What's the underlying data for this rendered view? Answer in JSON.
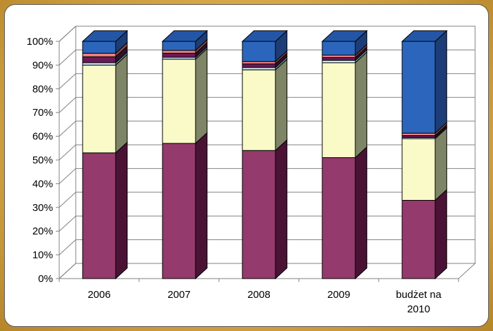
{
  "chart_data": {
    "type": "bar",
    "stacked": true,
    "percent_stacked": true,
    "three_d": true,
    "categories": [
      [
        "2006"
      ],
      [
        "2007"
      ],
      [
        "2008"
      ],
      [
        "2009"
      ],
      [
        "budżet na",
        "2010"
      ]
    ],
    "series": [
      {
        "values": [
          53,
          57,
          54,
          51,
          33
        ]
      },
      {
        "values": [
          37,
          35.5,
          34,
          40,
          26
        ]
      },
      {
        "values": [
          1,
          0.8,
          1,
          1,
          0.5
        ]
      },
      {
        "values": [
          2.5,
          1.7,
          1.5,
          1.2,
          0.8
        ]
      },
      {
        "values": [
          1.5,
          1.2,
          1,
          1,
          1
        ]
      },
      {
        "values": [
          5,
          3.8,
          8.5,
          5.8,
          38.7
        ]
      }
    ],
    "y_ticks": [
      "0%",
      "10%",
      "20%",
      "30%",
      "40%",
      "50%",
      "60%",
      "70%",
      "80%",
      "90%",
      "100%"
    ],
    "ylim": [
      0,
      100
    ],
    "grid": true,
    "legend": "none",
    "colors": {
      "front": [
        "#943a6c",
        "#fafac8",
        "#ccecf8",
        "#6a1a56",
        "#f08080",
        "#2c66bc"
      ],
      "side": [
        "#4a1336",
        "#7e8466",
        "#668c96",
        "#34102c",
        "#884646",
        "#1c3d78"
      ],
      "top": [
        "#7a2c5a",
        "#d6d6a4",
        "#a8c8d4",
        "#541446",
        "#c86868",
        "#2456a8"
      ]
    }
  }
}
